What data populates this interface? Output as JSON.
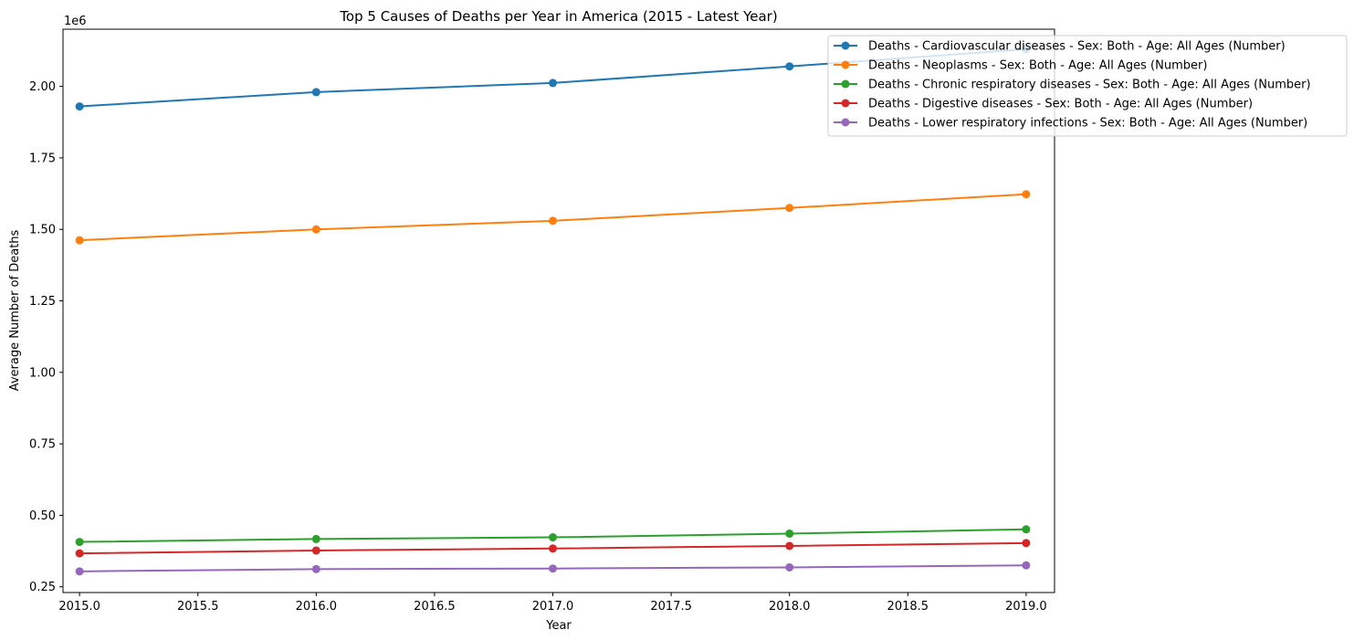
{
  "chart_data": {
    "type": "line",
    "title": "Top 5 Causes of Deaths per Year in America (2015 - Latest Year)",
    "xlabel": "Year",
    "ylabel": "Average Number of Deaths",
    "y_offset_label": "1e6",
    "y_scale": 1000000,
    "xlim": [
      2014.93,
      2019.12
    ],
    "ylim": [
      230000,
      2200000
    ],
    "x_ticks": [
      2015.0,
      2015.5,
      2016.0,
      2016.5,
      2017.0,
      2017.5,
      2018.0,
      2018.5,
      2019.0
    ],
    "x_tick_labels": [
      "2015.0",
      "2015.5",
      "2016.0",
      "2016.5",
      "2017.0",
      "2017.5",
      "2018.0",
      "2018.5",
      "2019.0"
    ],
    "y_ticks": [
      250000,
      500000,
      750000,
      1000000,
      1250000,
      1500000,
      1750000,
      2000000
    ],
    "y_tick_labels": [
      "0.25",
      "0.50",
      "0.75",
      "1.00",
      "1.25",
      "1.50",
      "1.75",
      "2.00"
    ],
    "grid": false,
    "legend_position": "top-right",
    "x": [
      2015,
      2016,
      2017,
      2018,
      2019
    ],
    "series": [
      {
        "name": "Deaths - Cardiovascular diseases - Sex: Both - Age: All Ages (Number)",
        "color": "#1f77b4",
        "values": [
          1930000,
          1980000,
          2012000,
          2070000,
          2130000
        ]
      },
      {
        "name": "Deaths - Neoplasms - Sex: Both - Age: All Ages (Number)",
        "color": "#ff7f0e",
        "values": [
          1462000,
          1500000,
          1530000,
          1575000,
          1623000
        ]
      },
      {
        "name": "Deaths - Chronic respiratory diseases - Sex: Both - Age: All Ages (Number)",
        "color": "#2ca02c",
        "values": [
          407000,
          417000,
          423000,
          436000,
          451000
        ]
      },
      {
        "name": "Deaths - Digestive diseases - Sex: Both - Age: All Ages (Number)",
        "color": "#d62728",
        "values": [
          367000,
          377000,
          384000,
          393000,
          403000
        ]
      },
      {
        "name": "Deaths - Lower respiratory infections - Sex: Both - Age: All Ages (Number)",
        "color": "#9467bd",
        "values": [
          304000,
          312000,
          314000,
          318000,
          325000
        ]
      }
    ]
  }
}
